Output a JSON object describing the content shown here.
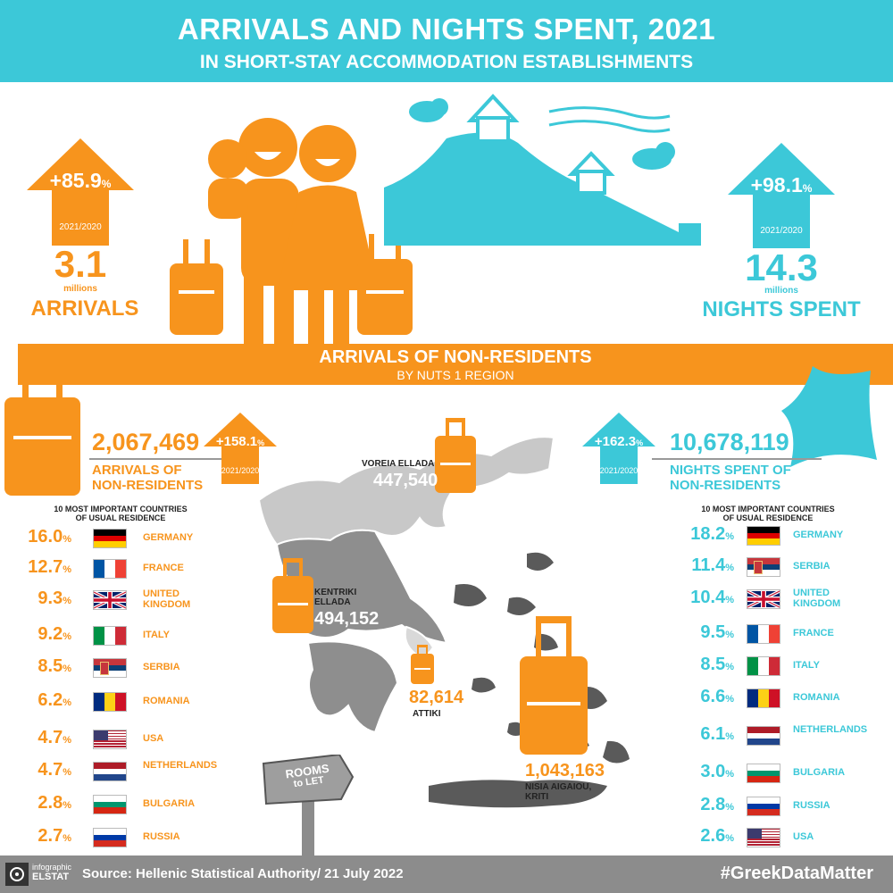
{
  "header": {
    "title": "ARRIVALS AND NIGHTS SPENT, 2021",
    "subtitle": "IN SHORT-STAY ACCOMMODATION ESTABLISHMENTS"
  },
  "arrivals": {
    "change": "+85.9",
    "change_unit": "%",
    "period": "2021/2020",
    "value": "3.1",
    "unit": "millions",
    "label": "ARRIVALS"
  },
  "nights": {
    "change": "+98.1",
    "change_unit": "%",
    "period": "2021/2020",
    "value": "14.3",
    "unit": "millions",
    "label": "NIGHTS SPENT"
  },
  "section": {
    "title": "ARRIVALS OF NON-RESIDENTS",
    "subtitle": "BY NUTS 1 REGION"
  },
  "nonres_arrivals": {
    "value": "2,067,469",
    "change": "+158.1",
    "change_unit": "%",
    "period": "2021/2020",
    "label_1": "ARRIVALS OF",
    "label_2": "NON-RESIDENTS",
    "list_title_1": "10 MOST IMPORTANT COUNTRIES",
    "list_title_2": "OF USUAL RESIDENCE",
    "countries": [
      {
        "pct": "16.0",
        "name": "GERMANY",
        "flag": "germany"
      },
      {
        "pct": "12.7",
        "name": "FRANCE",
        "flag": "france"
      },
      {
        "pct": "9.3",
        "name": "UNITED KINGDOM",
        "flag": "uk"
      },
      {
        "pct": "9.2",
        "name": "ITALY",
        "flag": "italy"
      },
      {
        "pct": "8.5",
        "name": "SERBIA",
        "flag": "serbia"
      },
      {
        "pct": "6.2",
        "name": "ROMANIA",
        "flag": "romania"
      },
      {
        "pct": "4.7",
        "name": "USA",
        "flag": "usa"
      },
      {
        "pct": "4.7",
        "name": "NETHERLANDS",
        "flag": "netherlands"
      },
      {
        "pct": "2.8",
        "name": "BULGARIA",
        "flag": "bulgaria"
      },
      {
        "pct": "2.7",
        "name": "RUSSIA",
        "flag": "russia"
      }
    ]
  },
  "nonres_nights": {
    "value": "10,678,119",
    "change": "+162.3",
    "change_unit": "%",
    "period": "2021/2020",
    "label_1": "NIGHTS SPENT OF",
    "label_2": "NON-RESIDENTS",
    "list_title_1": "10 MOST IMPORTANT COUNTRIES",
    "list_title_2": "OF USUAL RESIDENCE",
    "countries": [
      {
        "pct": "18.2",
        "name": "GERMANY",
        "flag": "germany"
      },
      {
        "pct": "11.4",
        "name": "SERBIA",
        "flag": "serbia"
      },
      {
        "pct": "10.4",
        "name": "UNITED KINGDOM",
        "flag": "uk"
      },
      {
        "pct": "9.5",
        "name": "FRANCE",
        "flag": "france"
      },
      {
        "pct": "8.5",
        "name": "ITALY",
        "flag": "italy"
      },
      {
        "pct": "6.6",
        "name": "ROMANIA",
        "flag": "romania"
      },
      {
        "pct": "6.1",
        "name": "NETHERLANDS",
        "flag": "netherlands"
      },
      {
        "pct": "3.0",
        "name": "BULGARIA",
        "flag": "bulgaria"
      },
      {
        "pct": "2.8",
        "name": "RUSSIA",
        "flag": "russia"
      },
      {
        "pct": "2.6",
        "name": "USA",
        "flag": "usa"
      }
    ]
  },
  "regions": {
    "voreia": {
      "name": "VOREIA ELLADA",
      "value": "447,540"
    },
    "kentriki": {
      "name_1": "KENTRIKI",
      "name_2": "ELLADA",
      "value": "494,152"
    },
    "attiki": {
      "name": "ATTIKI",
      "value": "82,614"
    },
    "nisia": {
      "name_1": "NISIA AIGAIOU,",
      "name_2": "KRITI",
      "value": "1,043,163"
    }
  },
  "signpost": {
    "line1": "ROOMS",
    "line2": "to LET"
  },
  "footer": {
    "logo_line1": "infographic",
    "logo_line2": "ELSTAT",
    "source": "Source: Hellenic Statistical Authority/ 21 July 2022",
    "hashtag": "#GreekDataMatter"
  },
  "colors": {
    "orange": "#f7941d",
    "cyan": "#3cc8d8",
    "grey": "#8c8c8c"
  }
}
